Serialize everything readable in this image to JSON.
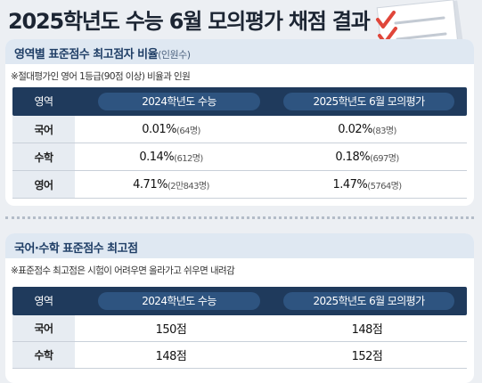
{
  "title": "2025학년도 수능 6월 모의평가 채점 결과",
  "section1": {
    "title": "영역별 표준점수 최고점자 비율",
    "title_sub": "(인원수)",
    "note": "※절대평가인 영어 1등급(90점 이상) 비율과 인원",
    "headers": [
      "영역",
      "2024학년도 수능",
      "2025학년도 6월 모의평가"
    ],
    "rows": [
      {
        "subject": "국어",
        "v2024": "0.01%",
        "c2024": "(64명)",
        "v2025": "0.02%",
        "c2025": "(83명)"
      },
      {
        "subject": "수학",
        "v2024": "0.14%",
        "c2024": "(612명)",
        "v2025": "0.18%",
        "c2025": "(697명)"
      },
      {
        "subject": "영어",
        "v2024": "4.71%",
        "c2024": "(2만843명)",
        "v2025": "1.47%",
        "c2025": "(5764명)"
      }
    ]
  },
  "section2": {
    "title": "국어·수학 표준점수 최고점",
    "note": "※표준점수 최고점은 시험이 어려우면 올라가고 쉬우면 내려감",
    "headers": [
      "영역",
      "2024학년도 수능",
      "2025학년도 6월 모의평가"
    ],
    "rows": [
      {
        "subject": "국어",
        "v2024": "150점",
        "v2025": "148점"
      },
      {
        "subject": "수학",
        "v2024": "148점",
        "v2025": "152점"
      }
    ]
  },
  "colors": {
    "header_navy": "#1f3a5c",
    "pill_blue": "#2e5480",
    "section_header": "#dfe8f2",
    "checkmark": "#e0463a"
  }
}
